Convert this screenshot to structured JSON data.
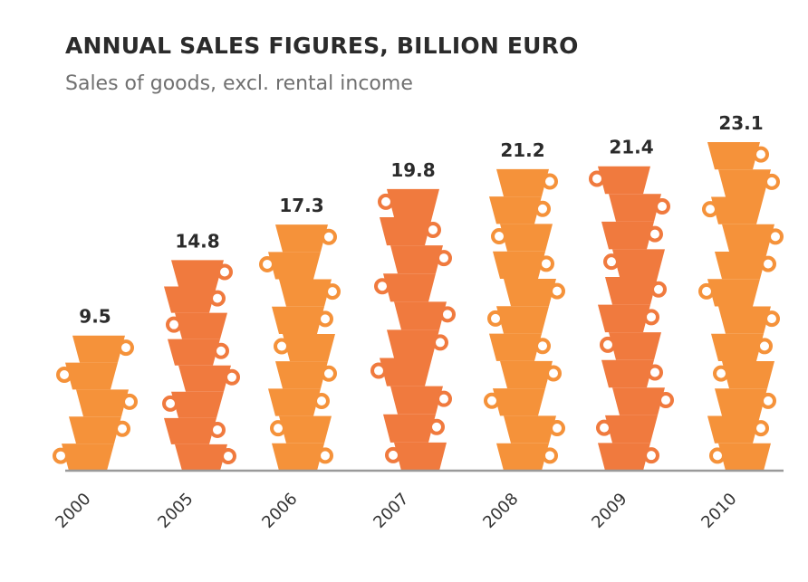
{
  "chart_data": {
    "type": "bar",
    "title": "ANNUAL SALES FIGURES, BILLION EURO",
    "subtitle": "Sales of goods, excl. rental income",
    "categories": [
      "2000",
      "2005",
      "2006",
      "2007",
      "2008",
      "2009",
      "2010"
    ],
    "values": [
      9.5,
      14.8,
      17.3,
      19.8,
      21.2,
      21.4,
      23.1
    ],
    "value_labels": [
      "9.5",
      "14.8",
      "17.3",
      "19.8",
      "21.2",
      "21.4",
      "23.1"
    ],
    "ylim": [
      0,
      23.1
    ],
    "xlabel": "",
    "ylabel": "",
    "grid": false,
    "legend": "none",
    "bar_style": "stacked cups",
    "colors": {
      "light": "#F5923A",
      "dark": "#F07A3E",
      "axis": "#9a9a9a",
      "label": "#2b2b2b"
    },
    "bar_colors": [
      "light",
      "dark",
      "light",
      "dark",
      "light",
      "dark",
      "light"
    ]
  }
}
